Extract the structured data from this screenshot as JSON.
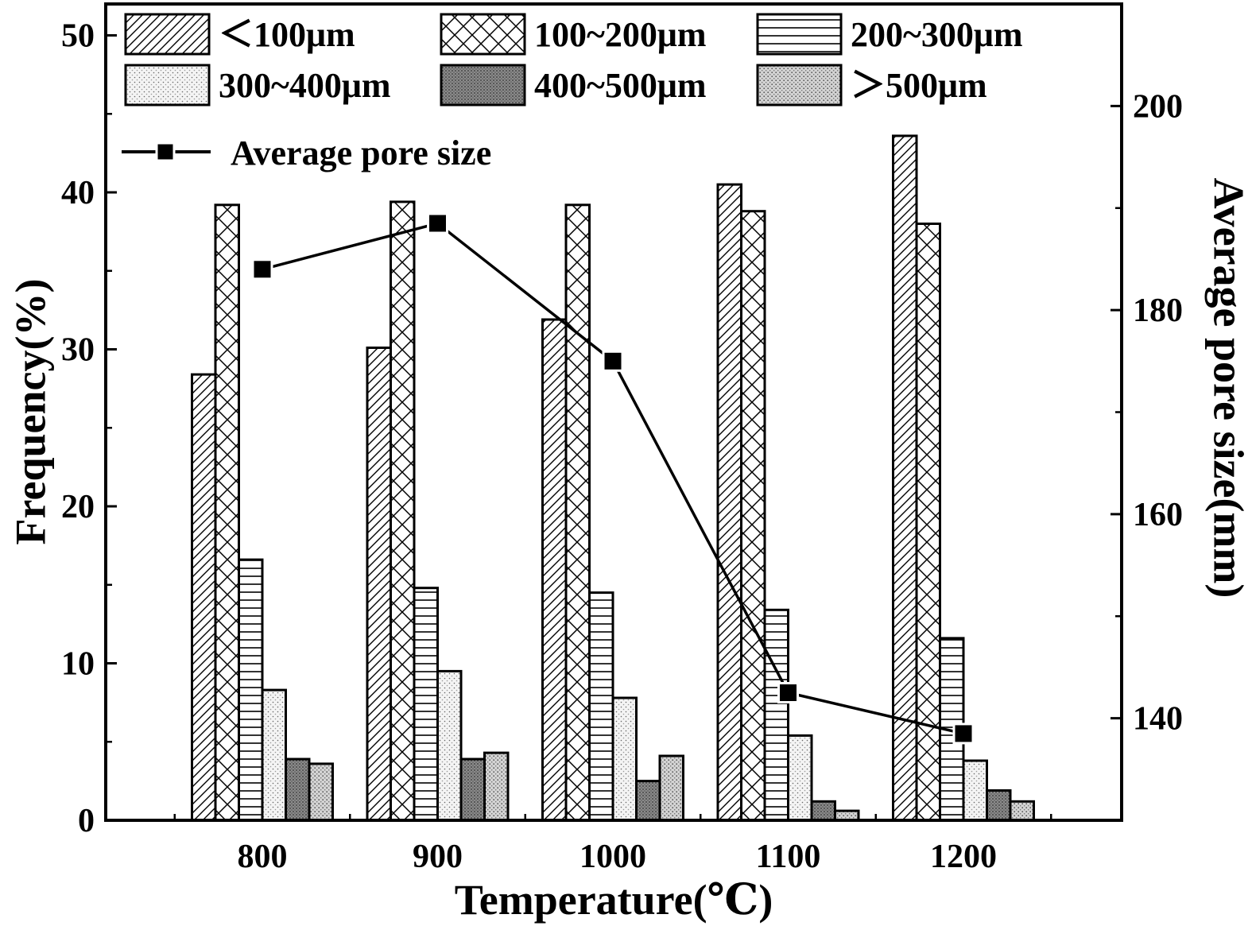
{
  "chart_data": {
    "type": "bar",
    "xlabel": "Temperature(℃)",
    "ylabel": "Frequency(%)",
    "y2label": "Average pore size(mm)",
    "categories": [
      "800",
      "900",
      "1000",
      "1100",
      "1200"
    ],
    "ylim": [
      0,
      52
    ],
    "yticks": [
      0,
      10,
      20,
      30,
      40,
      50
    ],
    "y2lim": [
      130,
      210
    ],
    "y2ticks": [
      140,
      160,
      180,
      200
    ],
    "legend_position": "top-left",
    "series": [
      {
        "name": "＜100μm",
        "pattern": "diag",
        "values": [
          28.4,
          30.1,
          31.9,
          40.5,
          43.6
        ]
      },
      {
        "name": "100~200μm",
        "pattern": "cross",
        "values": [
          39.2,
          39.4,
          39.2,
          38.8,
          38.0
        ]
      },
      {
        "name": "200~300μm",
        "pattern": "hlines",
        "values": [
          16.6,
          14.8,
          14.5,
          13.4,
          11.6
        ]
      },
      {
        "name": "300~400μm",
        "pattern": "dots-light",
        "values": [
          8.3,
          9.5,
          7.8,
          5.4,
          3.8
        ]
      },
      {
        "name": "400~500μm",
        "pattern": "dots-dark",
        "values": [
          3.9,
          3.9,
          2.5,
          1.2,
          1.9
        ]
      },
      {
        "name": "＞500μm",
        "pattern": "dots-mid",
        "values": [
          3.6,
          4.3,
          4.1,
          0.6,
          1.2
        ]
      }
    ],
    "line": {
      "name": "Average pore size",
      "axis": "right",
      "x": [
        "800",
        "900",
        "1000",
        "1100",
        "1200"
      ],
      "values": [
        184.0,
        188.5,
        175.0,
        142.5,
        138.5
      ]
    }
  }
}
